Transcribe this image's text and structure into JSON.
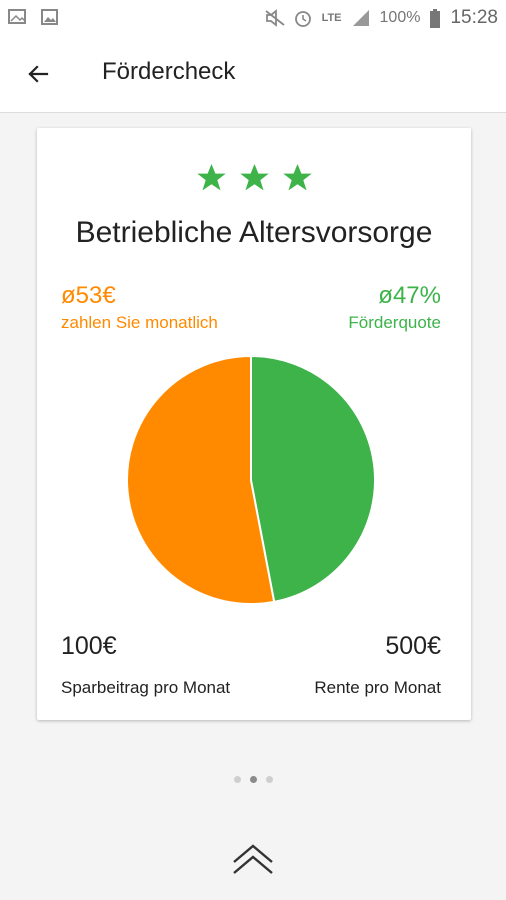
{
  "status_bar": {
    "battery_text": "100%",
    "network_text": "LTE",
    "time": "15:28",
    "icons": [
      "image-mail-icon",
      "gallery-icon",
      "mute-icon",
      "alarm-icon",
      "signal-icon",
      "battery-icon"
    ]
  },
  "app_bar": {
    "title": "Fördercheck",
    "back_icon": "arrow-back-icon"
  },
  "card": {
    "rating_stars": 3,
    "title": "Betriebliche Altersvorsorge",
    "left_stat": {
      "value": "ø53€",
      "label": "zahlen Sie monatlich"
    },
    "right_stat": {
      "value": "ø47%",
      "label": "Förderquote"
    },
    "amount_left": {
      "value": "100€",
      "label": "Sparbeitrag pro Monat"
    },
    "amount_right": {
      "value": "500€",
      "label": "Rente pro Monat"
    }
  },
  "chart_data": {
    "type": "pie",
    "series": [
      {
        "name": "",
        "value": 53,
        "color": "#ff8a00"
      },
      {
        "name": "",
        "value": 47,
        "color": "#3db34a"
      }
    ]
  },
  "pager": {
    "page_count": 3,
    "active_index": 1
  },
  "colors": {
    "orange": "#ff8a00",
    "green": "#3db34a"
  }
}
